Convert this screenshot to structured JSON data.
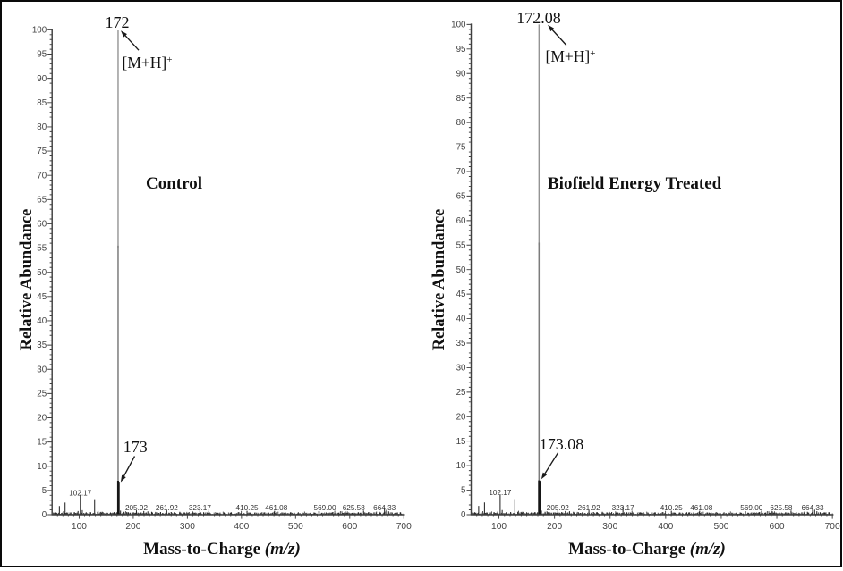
{
  "figure_type": "dual mass spectrum comparison",
  "chart_data": [
    {
      "type": "line",
      "variant": "mass-spectrum-sticks",
      "title": "Control",
      "xlabel_main": "Mass-to-Charge",
      "xlabel_unit": "(m/z)",
      "ylabel": "Relative Abundance",
      "xlim": [
        50,
        702
      ],
      "ylim": [
        0,
        100
      ],
      "x_major_tick": 100,
      "x_minor_tick": 10,
      "y_major_tick": 5,
      "y_minor_tick": 1,
      "x_tick_labels": [
        "100",
        "200",
        "300",
        "400",
        "500",
        "600",
        "700"
      ],
      "y_tick_labels": [
        "100",
        "95",
        "90",
        "85",
        "80",
        "75",
        "70",
        "65",
        "60",
        "55",
        "50",
        "45",
        "40",
        "35",
        "30",
        "25",
        "20",
        "15",
        "10",
        "5",
        "0"
      ],
      "base_peak": {
        "mz": 172,
        "intensity": 99.9,
        "label": "172"
      },
      "isotope_peak": {
        "mz": 173,
        "intensity": 6.8,
        "label": "173"
      },
      "adduct": {
        "main": "[M+H]",
        "sup": "+"
      },
      "annotated_peaks": [
        {
          "mz": 102.17,
          "intensity": 4.1,
          "label": "102.17"
        },
        {
          "mz": 205.92,
          "intensity": 0.9,
          "label": "205.92"
        },
        {
          "mz": 261.92,
          "intensity": 0.9,
          "label": "261.92"
        },
        {
          "mz": 323.17,
          "intensity": 1.7,
          "label": "323.17"
        },
        {
          "mz": 410.25,
          "intensity": 0.8,
          "label": "410.25"
        },
        {
          "mz": 461.08,
          "intensity": 0.8,
          "label": "461.08"
        },
        {
          "mz": 569.0,
          "intensity": 0.55,
          "label": "569.00"
        },
        {
          "mz": 625.58,
          "intensity": 0.85,
          "label": "625.58"
        },
        {
          "mz": 664.33,
          "intensity": 1.25,
          "label": "664.33"
        }
      ],
      "unlabeled_peaks": [
        [
          56.5,
          0.5
        ],
        [
          63.5,
          1.8
        ],
        [
          74.0,
          2.5
        ],
        [
          83.0,
          0.45
        ],
        [
          91.0,
          0.5
        ],
        [
          98.0,
          0.75
        ],
        [
          105.8,
          0.95
        ],
        [
          113.0,
          0.5
        ],
        [
          121.0,
          0.55
        ],
        [
          128.6,
          3.2
        ],
        [
          134.0,
          0.6
        ],
        [
          141.0,
          0.45
        ],
        [
          150.0,
          0.5
        ],
        [
          158.0,
          0.45
        ],
        [
          165.0,
          0.55
        ],
        [
          176.5,
          0.85
        ],
        [
          183.0,
          0.6
        ],
        [
          191.0,
          0.5
        ],
        [
          199.0,
          0.45
        ],
        [
          213.0,
          0.55
        ],
        [
          219.5,
          0.75
        ],
        [
          227.0,
          0.7
        ],
        [
          234.0,
          0.6
        ],
        [
          243.0,
          0.5
        ],
        [
          250.5,
          0.55
        ],
        [
          270.0,
          0.55
        ],
        [
          277.0,
          0.5
        ],
        [
          286.0,
          0.6
        ],
        [
          295.0,
          0.45
        ],
        [
          303.0,
          0.55
        ],
        [
          311.0,
          0.45
        ],
        [
          330.0,
          0.5
        ],
        [
          341.0,
          0.45
        ],
        [
          355.0,
          0.5
        ],
        [
          368.0,
          0.45
        ],
        [
          381.0,
          0.5
        ],
        [
          395.0,
          0.55
        ],
        [
          425.0,
          0.45
        ],
        [
          438.0,
          0.5
        ],
        [
          450.0,
          0.45
        ],
        [
          475.0,
          0.45
        ],
        [
          490.0,
          0.4
        ],
        [
          505.0,
          0.5
        ],
        [
          519.0,
          0.4
        ],
        [
          534.0,
          0.45
        ],
        [
          548.0,
          0.4
        ],
        [
          560.0,
          0.45
        ],
        [
          580.0,
          0.4
        ],
        [
          592.0,
          0.45
        ],
        [
          605.0,
          0.4
        ],
        [
          616.0,
          0.5
        ],
        [
          635.0,
          0.55
        ],
        [
          645.0,
          0.5
        ],
        [
          655.0,
          0.6
        ],
        [
          668.0,
          0.9
        ],
        [
          672.0,
          0.7
        ],
        [
          678.0,
          0.5
        ],
        [
          686.0,
          0.45
        ],
        [
          694.0,
          0.5
        ]
      ],
      "noise": {
        "seed": 12,
        "start": 52,
        "end": 700,
        "step_min": 0.75,
        "step_max": 1.9,
        "amp_min": 0.08,
        "amp_max": 0.48,
        "spike_prob": 0.18,
        "spike_amp": 0.4
      }
    },
    {
      "type": "line",
      "variant": "mass-spectrum-sticks",
      "title": "Biofield Energy Treated",
      "xlabel_main": "Mass-to-Charge",
      "xlabel_unit": "(m/z)",
      "ylabel": "Relative Abundance",
      "xlim": [
        50,
        702
      ],
      "ylim": [
        0,
        100
      ],
      "x_major_tick": 100,
      "x_minor_tick": 10,
      "y_major_tick": 5,
      "y_minor_tick": 1,
      "x_tick_labels": [
        "100",
        "200",
        "300",
        "400",
        "500",
        "600",
        "700"
      ],
      "y_tick_labels": [
        "100",
        "95",
        "90",
        "85",
        "80",
        "75",
        "70",
        "65",
        "60",
        "55",
        "50",
        "45",
        "40",
        "35",
        "30",
        "25",
        "20",
        "15",
        "10",
        "5",
        "0"
      ],
      "base_peak": {
        "mz": 172.08,
        "intensity": 100,
        "label": "172.08"
      },
      "isotope_peak": {
        "mz": 173.08,
        "intensity": 6.9,
        "label": "173.08"
      },
      "adduct": {
        "main": "[M+H]",
        "sup": "+"
      },
      "annotated_peaks": [
        {
          "mz": 102.17,
          "intensity": 4.1,
          "label": "102.17"
        },
        {
          "mz": 205.92,
          "intensity": 0.9,
          "label": "205.92"
        },
        {
          "mz": 261.92,
          "intensity": 0.9,
          "label": "261.92"
        },
        {
          "mz": 323.17,
          "intensity": 1.7,
          "label": "323.17"
        },
        {
          "mz": 410.25,
          "intensity": 0.8,
          "label": "410.25"
        },
        {
          "mz": 461.08,
          "intensity": 0.8,
          "label": "461.08"
        },
        {
          "mz": 569.0,
          "intensity": 0.55,
          "label": "569.00"
        },
        {
          "mz": 625.58,
          "intensity": 0.85,
          "label": "625.58"
        },
        {
          "mz": 664.33,
          "intensity": 1.25,
          "label": "664.33"
        }
      ],
      "unlabeled_peaks": [
        [
          56.5,
          0.5
        ],
        [
          63.5,
          1.8
        ],
        [
          74.0,
          2.5
        ],
        [
          83.0,
          0.45
        ],
        [
          91.0,
          0.5
        ],
        [
          98.0,
          0.75
        ],
        [
          105.8,
          0.95
        ],
        [
          113.0,
          0.5
        ],
        [
          121.0,
          0.55
        ],
        [
          128.6,
          3.2
        ],
        [
          134.0,
          0.6
        ],
        [
          141.0,
          0.45
        ],
        [
          150.0,
          0.5
        ],
        [
          158.0,
          0.45
        ],
        [
          165.0,
          0.55
        ],
        [
          176.5,
          0.85
        ],
        [
          183.0,
          0.6
        ],
        [
          191.0,
          0.5
        ],
        [
          199.0,
          0.45
        ],
        [
          213.0,
          0.55
        ],
        [
          219.5,
          0.75
        ],
        [
          227.0,
          0.7
        ],
        [
          234.0,
          0.6
        ],
        [
          243.0,
          0.5
        ],
        [
          250.5,
          0.55
        ],
        [
          270.0,
          0.55
        ],
        [
          277.0,
          0.5
        ],
        [
          286.0,
          0.6
        ],
        [
          295.0,
          0.45
        ],
        [
          303.0,
          0.55
        ],
        [
          311.0,
          0.45
        ],
        [
          330.0,
          0.5
        ],
        [
          341.0,
          0.45
        ],
        [
          355.0,
          0.5
        ],
        [
          368.0,
          0.45
        ],
        [
          381.0,
          0.5
        ],
        [
          395.0,
          0.55
        ],
        [
          425.0,
          0.45
        ],
        [
          438.0,
          0.5
        ],
        [
          450.0,
          0.45
        ],
        [
          475.0,
          0.45
        ],
        [
          490.0,
          0.4
        ],
        [
          505.0,
          0.5
        ],
        [
          519.0,
          0.4
        ],
        [
          534.0,
          0.45
        ],
        [
          548.0,
          0.4
        ],
        [
          560.0,
          0.45
        ],
        [
          580.0,
          0.4
        ],
        [
          592.0,
          0.45
        ],
        [
          605.0,
          0.4
        ],
        [
          616.0,
          0.5
        ],
        [
          635.0,
          0.55
        ],
        [
          645.0,
          0.5
        ],
        [
          655.0,
          0.6
        ],
        [
          668.0,
          0.9
        ],
        [
          672.0,
          0.7
        ],
        [
          678.0,
          0.5
        ],
        [
          686.0,
          0.45
        ],
        [
          694.0,
          0.5
        ]
      ],
      "noise": {
        "seed": 12,
        "start": 52,
        "end": 700,
        "step_min": 0.75,
        "step_max": 1.9,
        "amp_min": 0.08,
        "amp_max": 0.48,
        "spike_prob": 0.18,
        "spike_amp": 0.4
      }
    }
  ]
}
